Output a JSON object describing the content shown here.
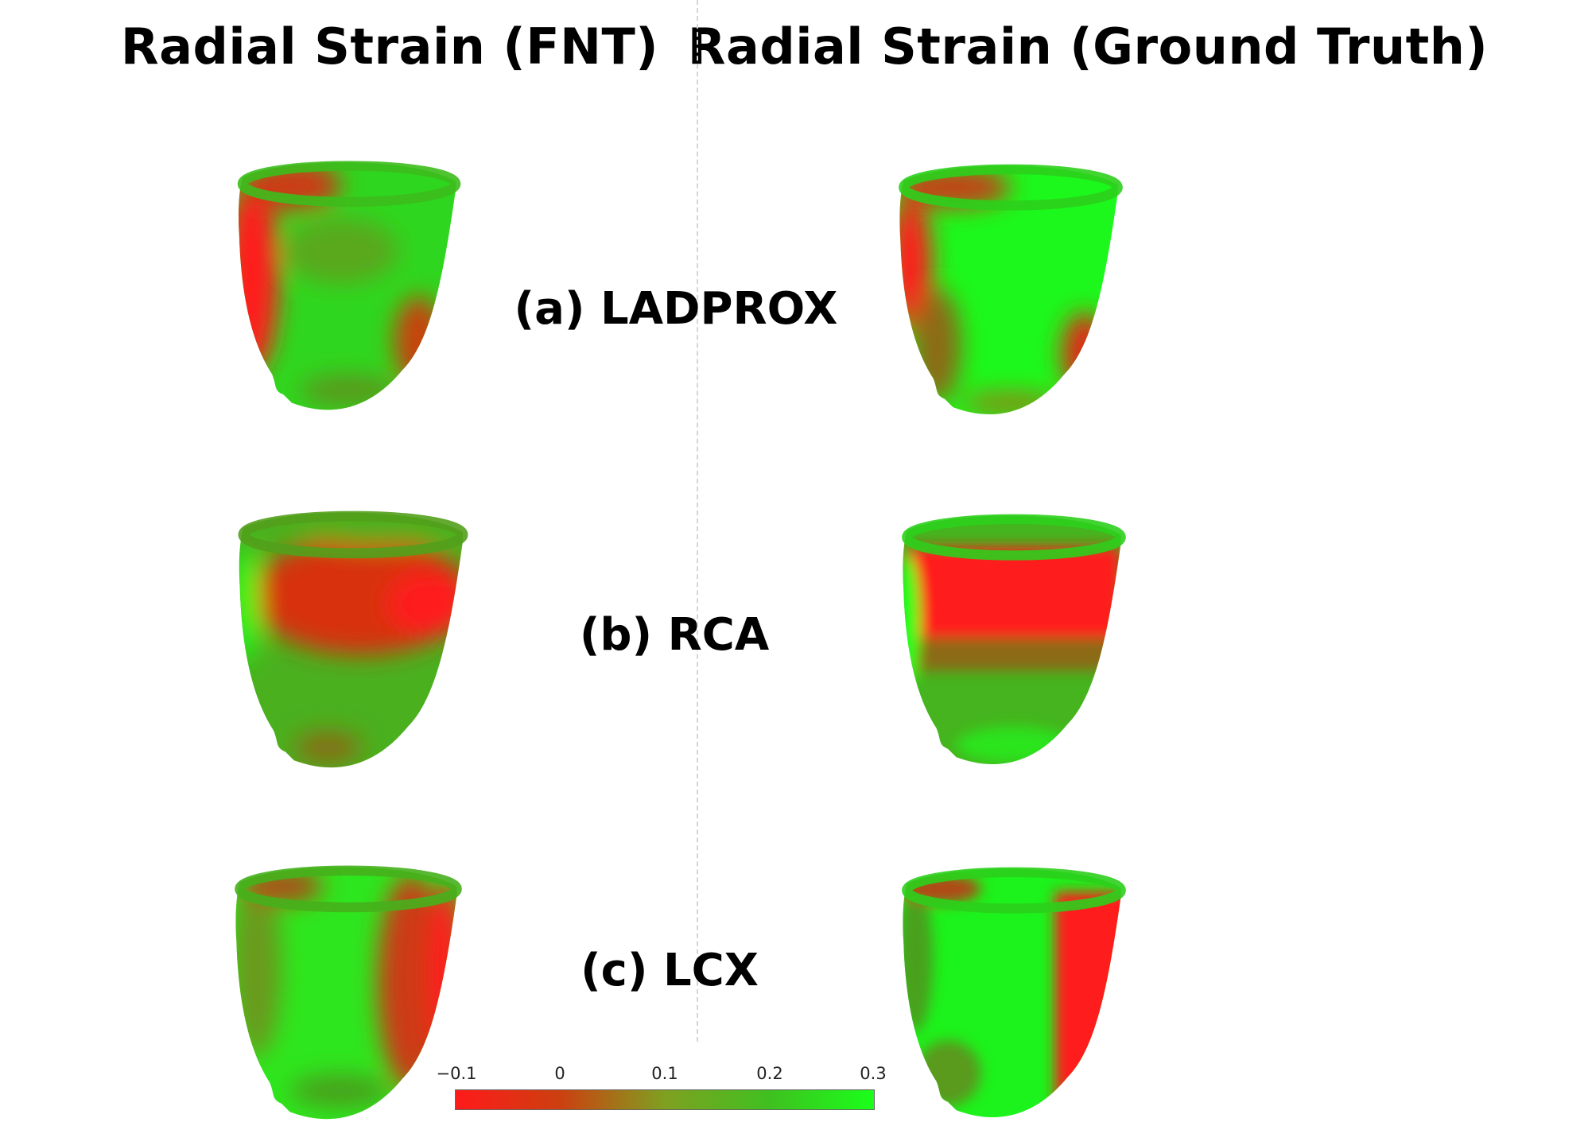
{
  "titles": {
    "left": "Radial Strain (FNT)",
    "right": "Radial Strain (Ground Truth)"
  },
  "rows": [
    {
      "label": "(a) LADPROX"
    },
    {
      "label": "(b) RCA"
    },
    {
      "label": "(c) LCX"
    }
  ],
  "colorbar": {
    "ticks": [
      "−0.1",
      "0",
      "0.1",
      "0.2",
      "0.3"
    ],
    "colors": {
      "low": "#ff1a1a",
      "high": "#1aff1a"
    }
  },
  "colors": {
    "red": "#ff1a1a",
    "green": "#1aff1a",
    "olive": "#6a9a1c"
  }
}
